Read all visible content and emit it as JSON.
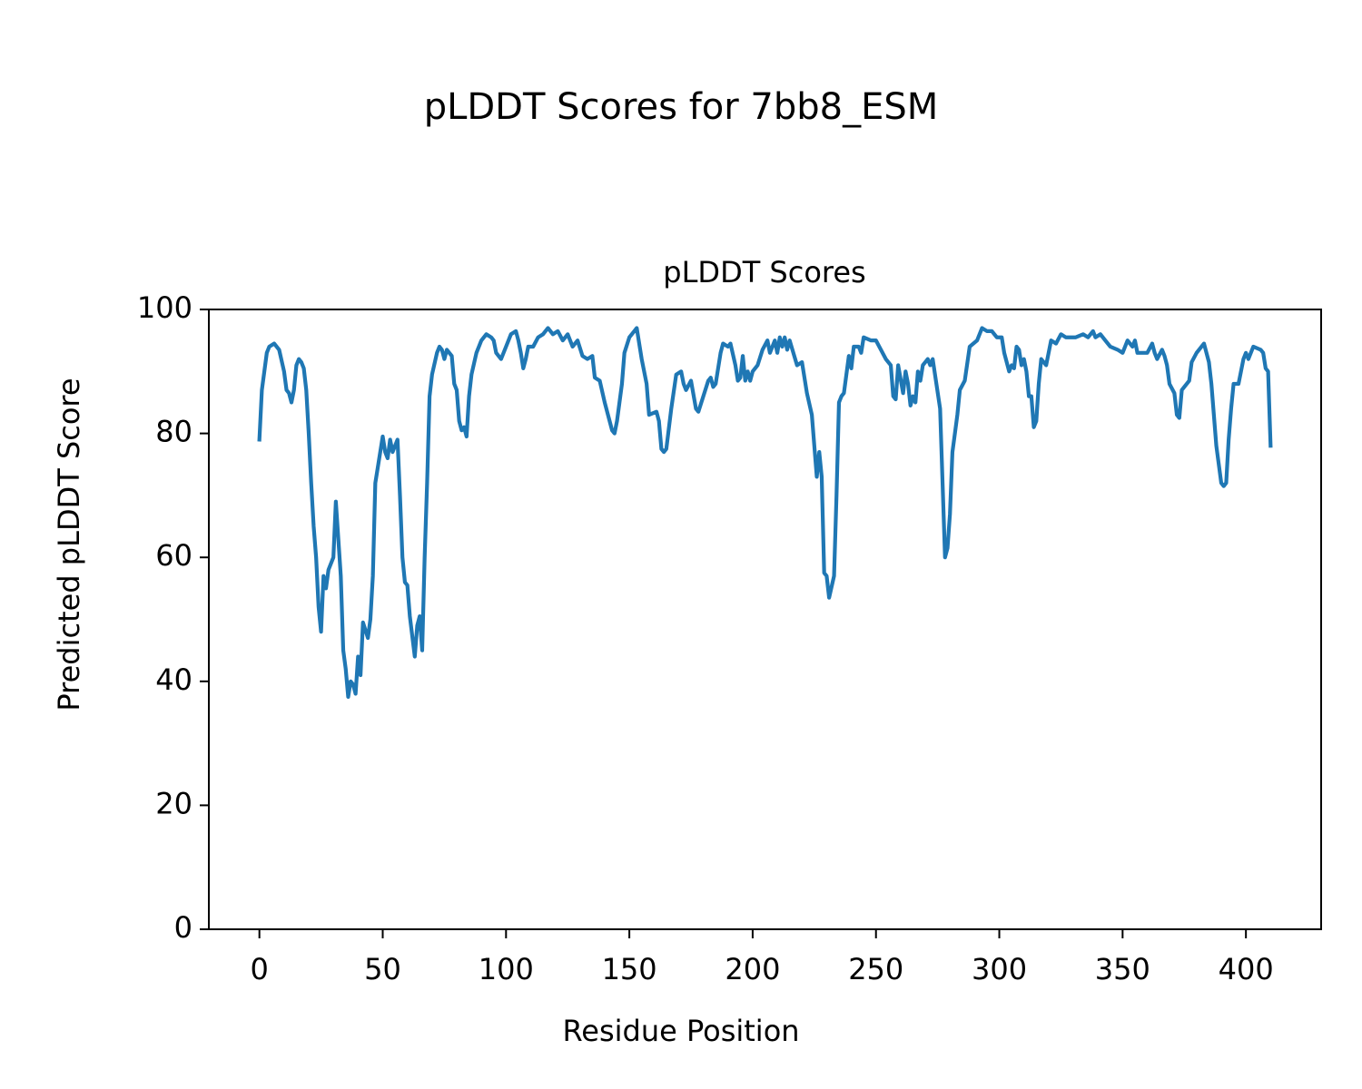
{
  "chart_data": {
    "type": "line",
    "title": "pLDDT Scores for 7bb8_ESM",
    "subtitle": "pLDDT Scores",
    "x_label": "Residue Position",
    "y_label": "Predicted pLDDT Score",
    "xlim": [
      -20.5,
      430.5
    ],
    "ylim": [
      0,
      100
    ],
    "xticks": [
      0,
      50,
      100,
      150,
      200,
      250,
      300,
      350,
      400
    ],
    "yticks": [
      0,
      20,
      40,
      60,
      80,
      100
    ],
    "grid": false,
    "x": [
      0,
      1,
      3,
      4,
      6,
      8,
      10,
      11,
      12,
      13,
      14,
      15,
      16,
      17,
      18,
      19,
      20,
      21,
      22,
      23,
      24,
      25,
      26,
      27,
      28,
      30,
      31,
      32,
      33,
      34,
      35,
      36,
      37,
      38,
      39,
      40,
      41,
      42,
      44,
      45,
      46,
      47,
      48,
      50,
      51,
      52,
      53,
      54,
      56,
      57,
      58,
      59,
      60,
      61,
      63,
      64,
      65,
      66,
      67,
      68,
      69,
      70,
      72,
      73,
      74,
      75,
      76,
      78,
      79,
      80,
      81,
      82,
      83,
      84,
      85,
      86,
      88,
      90,
      92,
      94,
      95,
      96,
      98,
      100,
      102,
      104,
      105,
      106,
      107,
      108,
      109,
      111,
      113,
      115,
      117,
      119,
      121,
      123,
      125,
      127,
      129,
      131,
      133,
      135,
      136,
      138,
      140,
      142,
      143,
      144,
      145,
      147,
      148,
      150,
      152,
      153,
      155,
      157,
      158,
      161,
      162,
      163,
      164,
      165,
      167,
      169,
      171,
      172,
      173,
      175,
      177,
      178,
      180,
      182,
      183,
      184,
      185,
      187,
      188,
      190,
      191,
      193,
      194,
      195,
      196,
      197,
      198,
      199,
      200,
      202,
      204,
      206,
      207,
      208,
      209,
      210,
      211,
      212,
      213,
      214,
      215,
      218,
      220,
      222,
      224,
      226,
      227,
      228,
      229,
      230,
      231,
      233,
      234,
      235,
      236,
      237,
      239,
      240,
      241,
      243,
      244,
      245,
      248,
      250,
      252,
      254,
      256,
      257,
      258,
      259,
      261,
      262,
      263,
      264,
      265,
      266,
      267,
      268,
      269,
      271,
      272,
      273,
      276,
      277,
      278,
      279,
      280,
      281,
      282,
      283,
      284,
      286,
      288,
      291,
      293,
      295,
      297,
      299,
      301,
      302,
      304,
      305,
      306,
      307,
      308,
      309,
      310,
      311,
      312,
      313,
      314,
      315,
      316,
      317,
      319,
      321,
      323,
      325,
      327,
      329,
      331,
      334,
      336,
      338,
      339,
      341,
      343,
      345,
      348,
      350,
      352,
      354,
      355,
      356,
      358,
      360,
      362,
      363,
      364,
      366,
      367,
      368,
      369,
      371,
      372,
      373,
      374,
      377,
      378,
      380,
      382,
      383,
      385,
      386,
      387,
      388,
      390,
      391,
      392,
      393,
      394,
      395,
      397,
      399,
      400,
      401,
      403,
      406,
      407,
      408,
      409,
      410
    ],
    "series": [
      {
        "name": "pLDDT",
        "color": "#1f77b4",
        "values": [
          79,
          87,
          93,
          94,
          94.5,
          93.5,
          90,
          87,
          86.5,
          85,
          87,
          91,
          92,
          91.5,
          90.5,
          87,
          80,
          72,
          65,
          60,
          52,
          48,
          57,
          55,
          58,
          60,
          69,
          63,
          57,
          45,
          42,
          37.5,
          40,
          39.5,
          38,
          44,
          41,
          49.5,
          47,
          50,
          57,
          72,
          74.5,
          79.5,
          77,
          76,
          79,
          77,
          79,
          70,
          60,
          56,
          55.5,
          50.5,
          44,
          49,
          50.5,
          45,
          60,
          72,
          86,
          89.5,
          93,
          94,
          93.5,
          92,
          93.5,
          92.5,
          88,
          87,
          82,
          80.5,
          81,
          79.5,
          86,
          89.5,
          93,
          95,
          96,
          95.5,
          95,
          93,
          92,
          94,
          96,
          96.5,
          95,
          93,
          90.5,
          92,
          94,
          94,
          95.5,
          96,
          97,
          96,
          96.5,
          95,
          96,
          94,
          95,
          92.5,
          92,
          92.5,
          89,
          88.5,
          85,
          82,
          80.5,
          80,
          82,
          88,
          93,
          95.5,
          96.5,
          97,
          92,
          88,
          83,
          83.5,
          82,
          77.5,
          77,
          77.5,
          84,
          89.5,
          90,
          88,
          87,
          88.5,
          84,
          83.5,
          86,
          88.5,
          89,
          87.5,
          88,
          93,
          94.5,
          94,
          94.5,
          91,
          88.5,
          89,
          92.5,
          88.5,
          90,
          88.5,
          90,
          91,
          93.5,
          95,
          93,
          94,
          95,
          93,
          95.5,
          94,
          95.5,
          93.5,
          95,
          91,
          91.5,
          86.5,
          83,
          73,
          77,
          73,
          57.5,
          57,
          53.5,
          57,
          70,
          85,
          86,
          86.5,
          92.5,
          90.5,
          94,
          94,
          93,
          95.5,
          95,
          95,
          93.5,
          92,
          91,
          86,
          85.5,
          91,
          86.5,
          90,
          88,
          84.5,
          86,
          85,
          90,
          88.5,
          91,
          92,
          91,
          92,
          84,
          72,
          60,
          61.5,
          67,
          77,
          80,
          83,
          87,
          88.5,
          94,
          95,
          97,
          96.5,
          96.5,
          95.5,
          95.5,
          93,
          90,
          91,
          90.5,
          94,
          93.5,
          91,
          92,
          90,
          86,
          86,
          81,
          82,
          88,
          92,
          91,
          95,
          94.5,
          96,
          95.5,
          95.5,
          95.5,
          96,
          95.5,
          96.5,
          95.5,
          96,
          95,
          94,
          93.5,
          93,
          95,
          94,
          95,
          93,
          93,
          93,
          94.5,
          93,
          92,
          93.5,
          92.5,
          91,
          88,
          86.5,
          83,
          82.5,
          87,
          88.5,
          91.5,
          93,
          94,
          94.5,
          91.5,
          88,
          83,
          78,
          72,
          71.5,
          72,
          79,
          84,
          88,
          88,
          92,
          93,
          92,
          94,
          93.5,
          93,
          90.5,
          90,
          78
        ]
      }
    ]
  }
}
